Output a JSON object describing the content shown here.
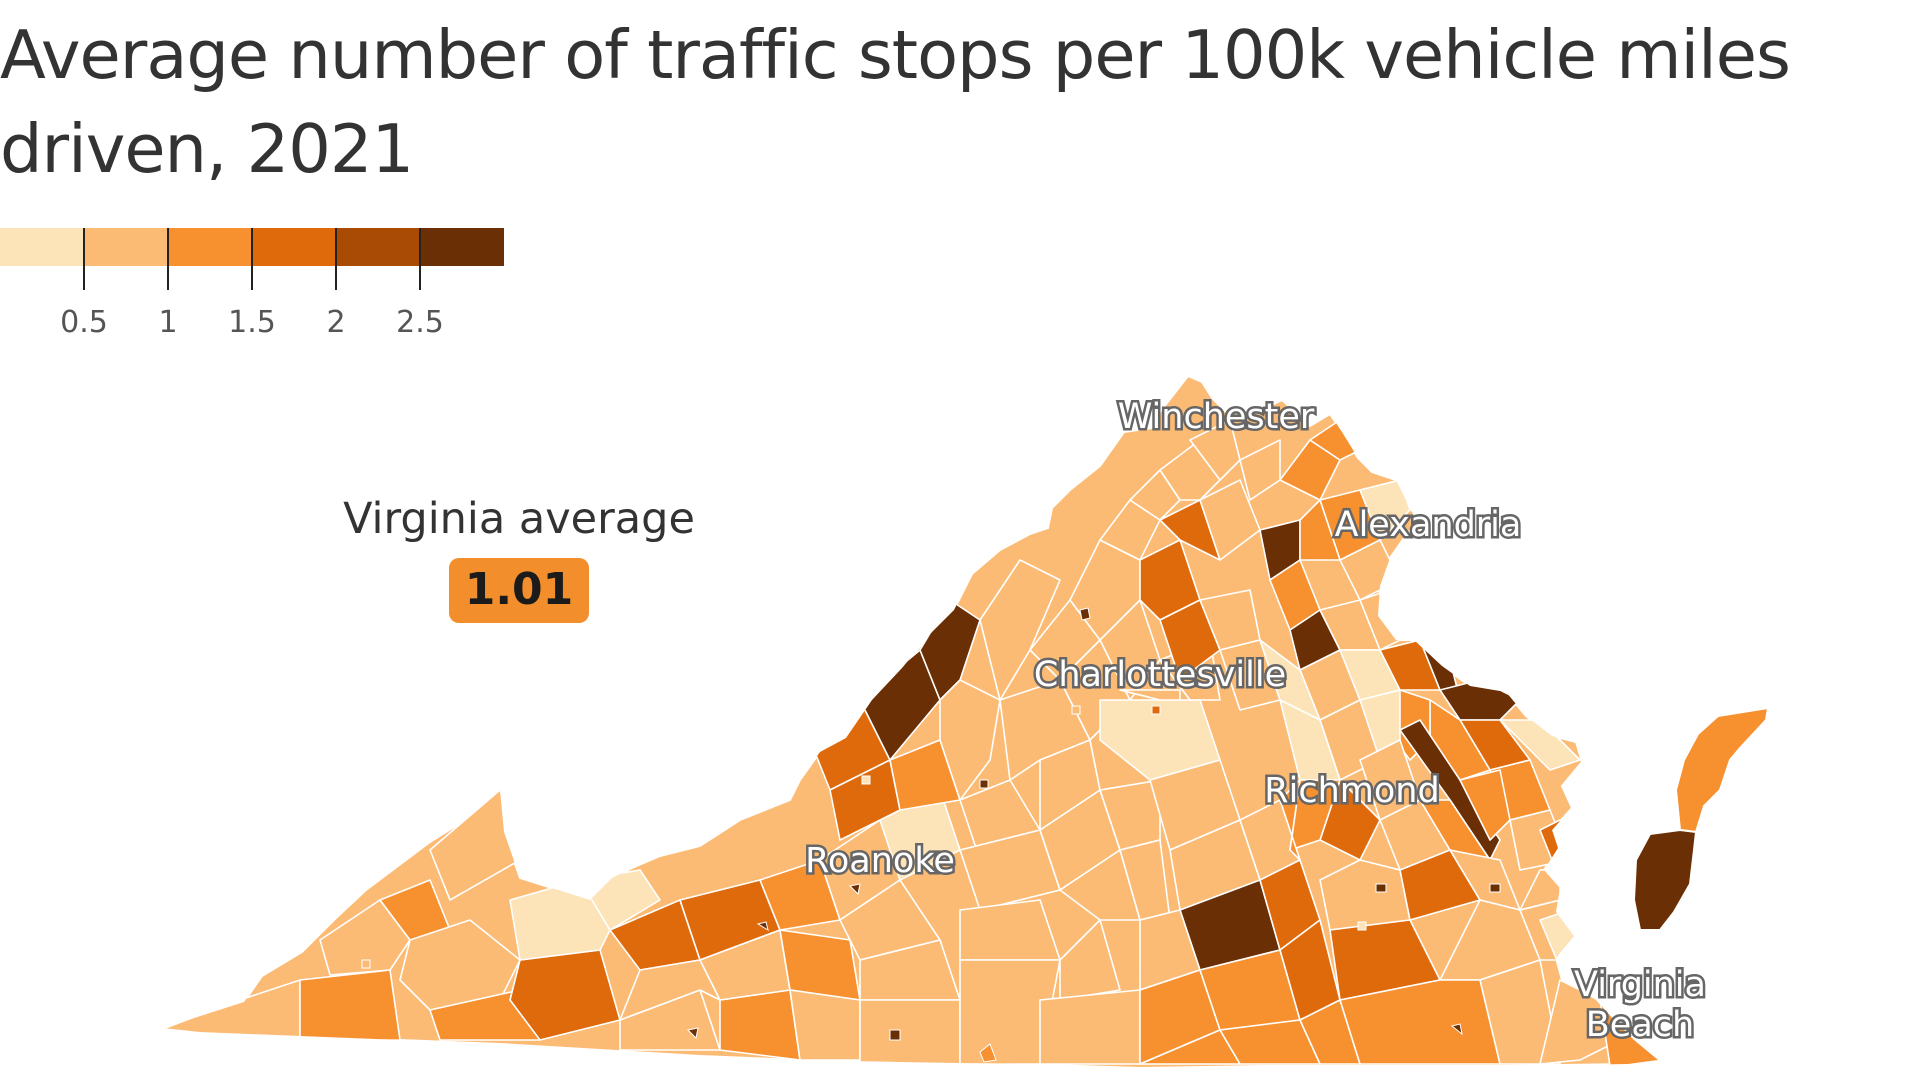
{
  "title": {
    "line1": "Average number of traffic stops per 100k vehicle miles",
    "line2": "driven, 2021"
  },
  "legend": {
    "ticks": [
      "0.5",
      "1",
      "1.5",
      "2",
      "2.5"
    ],
    "colors": [
      "#fde3b8",
      "#fcbb74",
      "#f7902f",
      "#df6a0c",
      "#a94a05",
      "#6b2f05"
    ]
  },
  "average": {
    "label": "Virginia average",
    "value": "1.01",
    "badge_color": "#f28e2b"
  },
  "cities": {
    "winchester": "Winchester",
    "alexandria": "Alexandria",
    "charlottesville": "Charlottesville",
    "richmond": "Richmond",
    "roanoke": "Roanoke",
    "virginia_beach_line1": "Virginia",
    "virginia_beach_line2": "Beach"
  }
}
